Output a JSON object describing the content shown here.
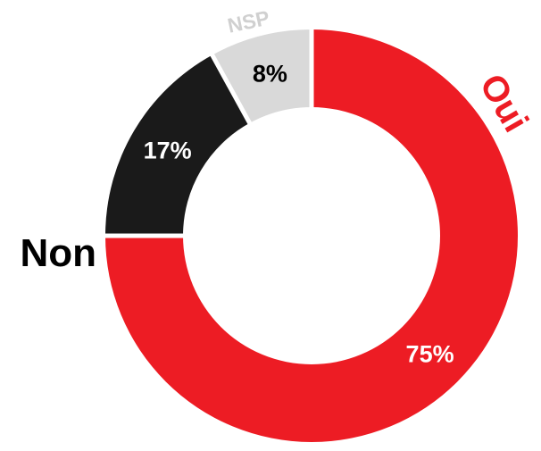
{
  "chart_data": {
    "type": "pie",
    "style": "donut",
    "start": "top",
    "direction": "clockwise",
    "slices": [
      {
        "label": "Oui",
        "value": 75,
        "value_label": "75%",
        "color": "#ed1c24",
        "label_color": "#ed1c24",
        "value_label_color": "#ffffff"
      },
      {
        "label": "Non",
        "value": 17,
        "value_label": "17%",
        "color": "#1a1a1a",
        "label_color": "#000000",
        "value_label_color": "#ffffff"
      },
      {
        "label": "NSP",
        "value": 8,
        "value_label": "8%",
        "color": "#d9d9d9",
        "label_color": "#d0d0d0",
        "value_label_color": "#000000"
      }
    ]
  }
}
